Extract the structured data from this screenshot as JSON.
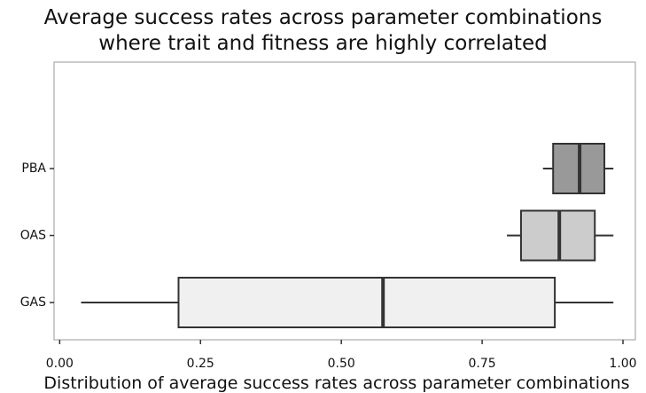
{
  "chart_data": {
    "type": "boxplot",
    "orientation": "horizontal",
    "title": "Average success rates across parameter combinations\nwhere trait and fitness are highly correlated",
    "xlabel": "Distribution of average success rates across parameter combinations",
    "categories": [
      "GAS",
      "OAS",
      "PBA"
    ],
    "colors": [
      "#f0f0f0",
      "#cccccc",
      "#999999"
    ],
    "low": [
      0.038,
      0.794,
      0.858
    ],
    "q1": [
      0.211,
      0.819,
      0.876
    ],
    "median": [
      0.574,
      0.887,
      0.923
    ],
    "q3": [
      0.879,
      0.95,
      0.967
    ],
    "high": [
      0.983,
      0.983,
      0.983
    ],
    "xlim": [
      -0.01,
      1.022
    ],
    "xticks": [
      {
        "value": 0,
        "label": "0.00"
      },
      0.25,
      {
        "value": 0.5,
        "label": "0.50"
      },
      0.75,
      {
        "value": 1,
        "label": "1.00"
      }
    ]
  }
}
